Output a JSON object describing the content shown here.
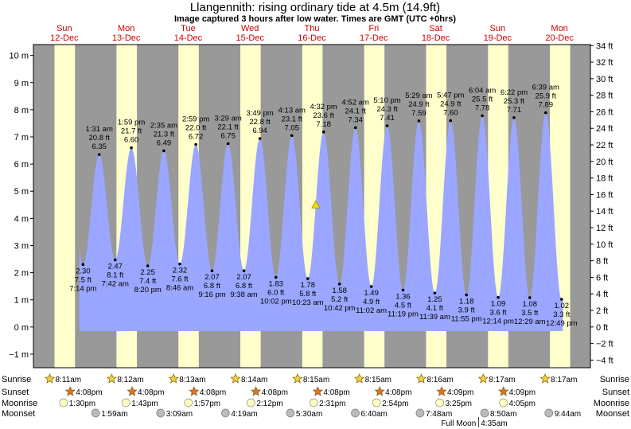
{
  "title": "Llangennith: rising  ordinary tide at 4.5m (14.9ft)",
  "subtitle": "Image captured 3 hours after low water. Times are GMT (UTC +0hrs)",
  "chart_data": {
    "type": "area",
    "ylabel_left": "m",
    "ylabel_right": "ft",
    "ylim": [
      -1.5,
      10.4
    ],
    "x_range_hours": [
      0,
      216
    ],
    "days": [
      {
        "dow": "Sun",
        "date": "12-Dec"
      },
      {
        "dow": "Mon",
        "date": "13-Dec"
      },
      {
        "dow": "Tue",
        "date": "14-Dec"
      },
      {
        "dow": "Wed",
        "date": "15-Dec"
      },
      {
        "dow": "Thu",
        "date": "16-Dec"
      },
      {
        "dow": "Fri",
        "date": "17-Dec"
      },
      {
        "dow": "Sat",
        "date": "18-Dec"
      },
      {
        "dow": "Sun",
        "date": "19-Dec"
      },
      {
        "dow": "Mon",
        "date": "20-Dec"
      }
    ],
    "y_ticks_m": [
      "10 m",
      "9 m",
      "8 m",
      "7 m",
      "6 m",
      "5 m",
      "4 m",
      "3 m",
      "2 m",
      "1 m",
      "0 m",
      "−1 m"
    ],
    "y_ticks_ft": [
      "34 ft",
      "32 ft",
      "30 ft",
      "28 ft",
      "26 ft",
      "24 ft",
      "22 ft",
      "20 ft",
      "18 ft",
      "16 ft",
      "14 ft",
      "12 ft",
      "10 ft",
      "8 ft",
      "6 ft",
      "4 ft",
      "2 ft",
      "0 ft",
      "−2 ft",
      "−4 ft"
    ],
    "tides": [
      {
        "type": "low",
        "hour": 19.23,
        "m": 2.3,
        "label_m": "2.30",
        "ft": "7.5 ft",
        "time": "7:14 pm"
      },
      {
        "type": "high",
        "hour": 25.52,
        "m": 6.35,
        "label_m": "6.35",
        "ft": "20.8 ft",
        "time": "1:31 am"
      },
      {
        "type": "low",
        "hour": 31.7,
        "m": 2.47,
        "label_m": "2.47",
        "ft": "8.1 ft",
        "time": "7:42 am"
      },
      {
        "type": "high",
        "hour": 37.98,
        "m": 6.6,
        "label_m": "6.60",
        "ft": "21.7 ft",
        "time": "1:59 pm"
      },
      {
        "type": "low",
        "hour": 44.33,
        "m": 2.25,
        "label_m": "2.25",
        "ft": "7.4 ft",
        "time": "8:20 pm"
      },
      {
        "type": "high",
        "hour": 50.58,
        "m": 6.49,
        "label_m": "6.49",
        "ft": "21.3 ft",
        "time": "2:35 am"
      },
      {
        "type": "low",
        "hour": 56.77,
        "m": 2.32,
        "label_m": "2.32",
        "ft": "7.6 ft",
        "time": "8:46 am"
      },
      {
        "type": "high",
        "hour": 62.98,
        "m": 6.72,
        "label_m": "6.72",
        "ft": "22.0 ft",
        "time": "2:59 pm"
      },
      {
        "type": "low",
        "hour": 69.27,
        "m": 2.07,
        "label_m": "2.07",
        "ft": "6.8 ft",
        "time": "9:16 pm"
      },
      {
        "type": "high",
        "hour": 75.48,
        "m": 6.75,
        "label_m": "6.75",
        "ft": "22.1 ft",
        "time": "3:29 am"
      },
      {
        "type": "low",
        "hour": 81.63,
        "m": 2.07,
        "label_m": "2.07",
        "ft": "6.8 ft",
        "time": "9:38 am"
      },
      {
        "type": "high",
        "hour": 87.82,
        "m": 6.94,
        "label_m": "6.94",
        "ft": "22.8 ft",
        "time": "3:49 pm"
      },
      {
        "type": "low",
        "hour": 94.03,
        "m": 1.83,
        "label_m": "1.83",
        "ft": "6.0 ft",
        "time": "10:02 pm"
      },
      {
        "type": "high",
        "hour": 100.22,
        "m": 7.05,
        "label_m": "7.05",
        "ft": "23.1 ft",
        "time": "4:13 am"
      },
      {
        "type": "low",
        "hour": 106.38,
        "m": 1.78,
        "label_m": "1.78",
        "ft": "5.8 ft",
        "time": "10:23 am"
      },
      {
        "type": "high",
        "hour": 112.53,
        "m": 7.18,
        "label_m": "7.18",
        "ft": "23.6 ft",
        "time": "4:32 pm"
      },
      {
        "type": "low",
        "hour": 118.7,
        "m": 1.58,
        "label_m": "1.58",
        "ft": "5.2 ft",
        "time": "10:42 pm"
      },
      {
        "type": "high",
        "hour": 124.87,
        "m": 7.34,
        "label_m": "7.34",
        "ft": "24.1 ft",
        "time": "4:52 am"
      },
      {
        "type": "low",
        "hour": 131.03,
        "m": 1.49,
        "label_m": "1.49",
        "ft": "4.9 ft",
        "time": "11:02 am"
      },
      {
        "type": "high",
        "hour": 137.17,
        "m": 7.41,
        "label_m": "7.41",
        "ft": "24.3 ft",
        "time": "5:10 pm"
      },
      {
        "type": "low",
        "hour": 143.32,
        "m": 1.36,
        "label_m": "1.36",
        "ft": "4.5 ft",
        "time": "11:19 pm"
      },
      {
        "type": "high",
        "hour": 149.48,
        "m": 7.59,
        "label_m": "7.59",
        "ft": "24.9 ft",
        "time": "5:29 am"
      },
      {
        "type": "low",
        "hour": 155.65,
        "m": 1.25,
        "label_m": "1.25",
        "ft": "4.1 ft",
        "time": "11:39 am"
      },
      {
        "type": "high",
        "hour": 161.78,
        "m": 7.6,
        "label_m": "7.60",
        "ft": "24.9 ft",
        "time": "5:47 pm"
      },
      {
        "type": "low",
        "hour": 167.92,
        "m": 1.18,
        "label_m": "1.18",
        "ft": "3.9 ft",
        "time": "11:55 pm"
      },
      {
        "type": "high",
        "hour": 174.07,
        "m": 7.78,
        "label_m": "7.78",
        "ft": "25.5 ft",
        "time": "6:04 am"
      },
      {
        "type": "low",
        "hour": 180.23,
        "m": 1.09,
        "label_m": "1.09",
        "ft": "3.6 ft",
        "time": "12:14 pm"
      },
      {
        "type": "high",
        "hour": 186.37,
        "m": 7.71,
        "label_m": "7.71",
        "ft": "25.3 ft",
        "time": "6:22 pm"
      },
      {
        "type": "low",
        "hour": 192.48,
        "m": 1.08,
        "label_m": "1.08",
        "ft": "3.5 ft",
        "time": "12:29 am"
      },
      {
        "type": "high",
        "hour": 198.65,
        "m": 7.89,
        "label_m": "7.89",
        "ft": "25.9 ft",
        "time": "6:39 am"
      },
      {
        "type": "low",
        "hour": 204.82,
        "m": 1.02,
        "label_m": "1.02",
        "ft": "3.3 ft",
        "time": "12:49 pm"
      }
    ],
    "current": {
      "hour": 109.5,
      "m": 4.5
    },
    "daylight": [
      {
        "start": 8.18,
        "end": 16.13
      },
      {
        "start": 32.2,
        "end": 40.13
      },
      {
        "start": 56.22,
        "end": 64.13
      },
      {
        "start": 80.23,
        "end": 88.13
      },
      {
        "start": 104.25,
        "end": 112.13
      },
      {
        "start": 128.25,
        "end": 136.13
      },
      {
        "start": 152.27,
        "end": 160.15
      },
      {
        "start": 176.28,
        "end": 184.15
      },
      {
        "start": 200.28,
        "end": 208.15
      }
    ],
    "sunrise": [
      {
        "hour": 8.18,
        "time": "8:11am"
      },
      {
        "hour": 32.2,
        "time": "8:12am"
      },
      {
        "hour": 56.22,
        "time": "8:13am"
      },
      {
        "hour": 80.23,
        "time": "8:14am"
      },
      {
        "hour": 104.25,
        "time": "8:15am"
      },
      {
        "hour": 128.25,
        "time": "8:15am"
      },
      {
        "hour": 152.27,
        "time": "8:16am"
      },
      {
        "hour": 176.28,
        "time": "8:17am"
      },
      {
        "hour": 200.28,
        "time": "8:17am"
      }
    ],
    "sunset": [
      {
        "hour": 16.13,
        "time": "4:08pm"
      },
      {
        "hour": 40.13,
        "time": "4:08pm"
      },
      {
        "hour": 64.13,
        "time": "4:08pm"
      },
      {
        "hour": 88.13,
        "time": "4:08pm"
      },
      {
        "hour": 112.13,
        "time": "4:08pm"
      },
      {
        "hour": 136.13,
        "time": "4:08pm"
      },
      {
        "hour": 160.15,
        "time": "4:09pm"
      },
      {
        "hour": 184.15,
        "time": "4:09pm"
      }
    ],
    "moonrise": [
      {
        "hour": 13.5,
        "time": "1:30pm"
      },
      {
        "hour": 37.72,
        "time": "1:43pm"
      },
      {
        "hour": 61.95,
        "time": "1:57pm"
      },
      {
        "hour": 86.2,
        "time": "2:12pm"
      },
      {
        "hour": 110.52,
        "time": "2:31pm"
      },
      {
        "hour": 134.9,
        "time": "2:54pm"
      },
      {
        "hour": 159.42,
        "time": "3:25pm"
      },
      {
        "hour": 184.08,
        "time": "4:05pm"
      }
    ],
    "moonset": [
      {
        "hour": 25.98,
        "time": "1:59am"
      },
      {
        "hour": 51.15,
        "time": "3:09am"
      },
      {
        "hour": 76.32,
        "time": "4:19am"
      },
      {
        "hour": 101.5,
        "time": "5:30am"
      },
      {
        "hour": 126.67,
        "time": "6:40am"
      },
      {
        "hour": 151.8,
        "time": "7:48am"
      },
      {
        "hour": 176.83,
        "time": "8:50am"
      },
      {
        "hour": 201.73,
        "time": "9:44am"
      }
    ],
    "full_moon": {
      "hour": 172.58,
      "label": "Full Moon",
      "time": "4:35am"
    },
    "row_labels": {
      "sunrise": "Sunrise",
      "sunset": "Sunset",
      "moonrise": "Moonrise",
      "moonset": "Moonset"
    },
    "colors": {
      "night": "#999999",
      "day": "#ffffcc",
      "water": "#9aa6ff",
      "day_text": "#cc0000",
      "sun": "#f0d040",
      "sunset": "#e07030",
      "moon": "#ffffc0",
      "moonset": "#bbbbbb"
    }
  }
}
